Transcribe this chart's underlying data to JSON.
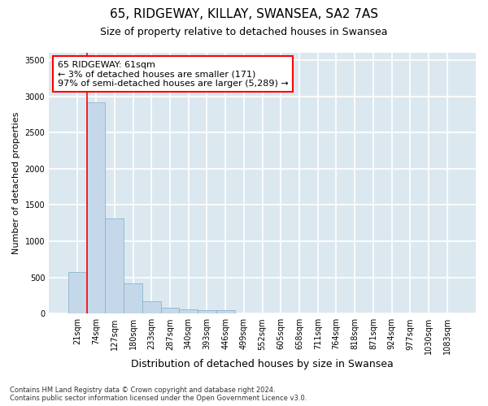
{
  "title1": "65, RIDGEWAY, KILLAY, SWANSEA, SA2 7AS",
  "title2": "Size of property relative to detached houses in Swansea",
  "xlabel": "Distribution of detached houses by size in Swansea",
  "ylabel": "Number of detached properties",
  "categories": [
    "21sqm",
    "74sqm",
    "127sqm",
    "180sqm",
    "233sqm",
    "287sqm",
    "340sqm",
    "393sqm",
    "446sqm",
    "499sqm",
    "552sqm",
    "605sqm",
    "658sqm",
    "711sqm",
    "764sqm",
    "818sqm",
    "871sqm",
    "924sqm",
    "977sqm",
    "1030sqm",
    "1083sqm"
  ],
  "values": [
    580,
    2920,
    1310,
    415,
    170,
    80,
    55,
    50,
    50,
    0,
    0,
    0,
    0,
    0,
    0,
    0,
    0,
    0,
    0,
    0,
    0
  ],
  "bar_color": "#c5d8ea",
  "bar_edgecolor": "#8ab4cc",
  "annotation_text": "65 RIDGEWAY: 61sqm\n← 3% of detached houses are smaller (171)\n97% of semi-detached houses are larger (5,289) →",
  "annotation_box_facecolor": "white",
  "annotation_box_edgecolor": "red",
  "property_line_color": "red",
  "property_line_x": 0,
  "ylim": [
    0,
    3600
  ],
  "yticks": [
    0,
    500,
    1000,
    1500,
    2000,
    2500,
    3000,
    3500
  ],
  "footer1": "Contains HM Land Registry data © Crown copyright and database right 2024.",
  "footer2": "Contains public sector information licensed under the Open Government Licence v3.0.",
  "bg_color": "#ffffff",
  "plot_bg_color": "#dce8f0",
  "grid_color": "#ffffff",
  "title1_fontsize": 11,
  "title2_fontsize": 9,
  "xlabel_fontsize": 9,
  "ylabel_fontsize": 8,
  "tick_fontsize": 7,
  "annotation_fontsize": 8,
  "footer_fontsize": 6
}
